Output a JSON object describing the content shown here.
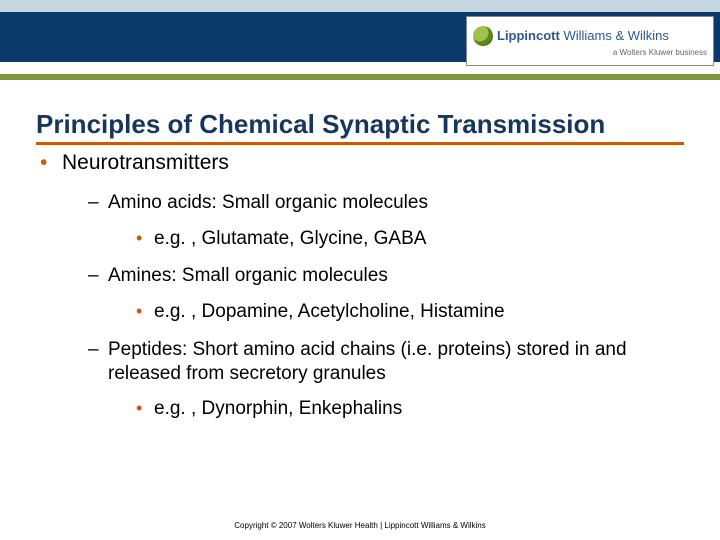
{
  "header": {
    "logo_main_a": "Lippincott",
    "logo_main_b": "Williams & Wilkins",
    "logo_sub": "a Wolters Kluwer business"
  },
  "title": "Principles of Chemical Synaptic Transmission",
  "bullets": {
    "l1_0": "Neurotransmitters",
    "l2_0": "Amino acids: Small organic molecules",
    "l3_0": "e.g. , Glutamate, Glycine, GABA",
    "l2_1": "Amines: Small organic molecules",
    "l3_1": "e.g. , Dopamine, Acetylcholine, Histamine",
    "l2_2": "Peptides: Short amino acid chains (i.e. proteins) stored in and released from secretory granules",
    "l3_2": "e.g. , Dynorphin, Enkephalins"
  },
  "footer": "Copyright © 2007 Wolters Kluwer Health | Lippincott Williams & Wilkins",
  "colors": {
    "title_color": "#17365d",
    "accent_line": "#c55a11",
    "bullet_orange": "#c55a11",
    "header_dark": "#0a3a6a",
    "header_light": "#c6d5e2",
    "green_line": "#7a9a3a"
  }
}
